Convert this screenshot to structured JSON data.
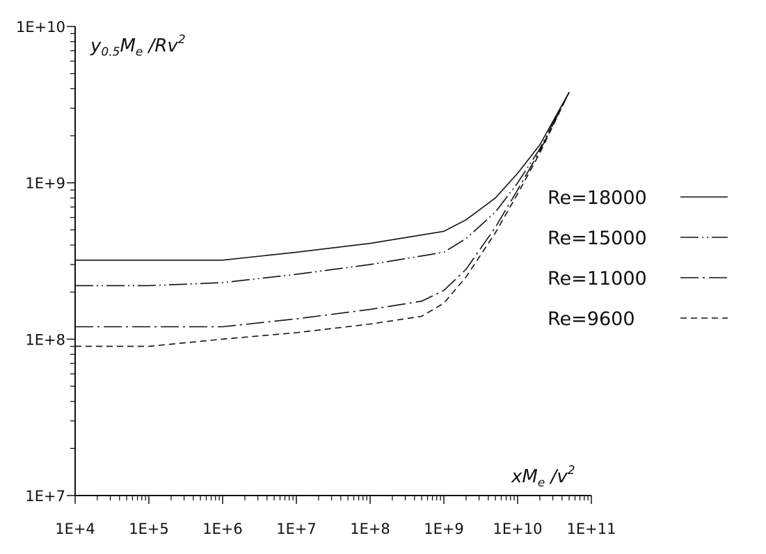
{
  "chart_data": {
    "type": "line",
    "title": "",
    "x_scale": "log",
    "y_scale": "log",
    "xlim": [
      10000,
      100000000000
    ],
    "ylim": [
      10000000,
      10000000000
    ],
    "x_ticks": [
      "1E+4",
      "1E+5",
      "1E+6",
      "1E+7",
      "1E+8",
      "1E+9",
      "1E+10",
      "1E+11"
    ],
    "y_ticks": [
      "1E+7",
      "1E+8",
      "1E+9",
      "1E+10"
    ],
    "xlabel": {
      "base": "xM",
      "sub": "e",
      "mid": " /v",
      "sup": "2"
    },
    "ylabel": {
      "pre": "y",
      "sub1": "0.5",
      "base": "M",
      "sub2": "e",
      "mid": " /Rv",
      "sup": "2"
    },
    "legend_position": "right",
    "grid": false,
    "series": [
      {
        "name": "Re=18000",
        "dash": "solid",
        "x": [
          10000,
          1000000,
          10000000,
          100000000,
          1000000000,
          2000000000,
          5000000000,
          10000000000,
          20000000000,
          50000000000
        ],
        "y": [
          320000000,
          320000000,
          360000000,
          410000000,
          490000000,
          580000000,
          800000000,
          1150000000,
          1750000000,
          3800000000
        ]
      },
      {
        "name": "Re=15000",
        "dash": "dash-dot-dot",
        "x": [
          10000,
          100000,
          1000000,
          10000000,
          100000000,
          1000000000,
          2000000000,
          5000000000,
          10000000000,
          20000000000,
          50000000000
        ],
        "y": [
          220000000,
          220000000,
          230000000,
          260000000,
          300000000,
          360000000,
          440000000,
          650000000,
          1000000000,
          1650000000,
          3800000000
        ]
      },
      {
        "name": "Re=11000",
        "dash": "dash-dot",
        "x": [
          10000,
          1000000,
          10000000,
          100000000,
          500000000,
          1000000000,
          2000000000,
          5000000000,
          10000000000,
          20000000000,
          50000000000
        ],
        "y": [
          120000000,
          120000000,
          135000000,
          155000000,
          175000000,
          205000000,
          280000000,
          520000000,
          900000000,
          1600000000,
          3800000000
        ]
      },
      {
        "name": "Re=9600",
        "dash": "dashed",
        "x": [
          10000,
          100000,
          1000000,
          10000000,
          100000000,
          500000000,
          1000000000,
          2000000000,
          5000000000,
          10000000000,
          20000000000,
          50000000000
        ],
        "y": [
          90000000,
          90000000,
          100000000,
          110000000,
          125000000,
          140000000,
          170000000,
          250000000,
          480000000,
          850000000,
          1550000000,
          3800000000
        ]
      }
    ]
  }
}
